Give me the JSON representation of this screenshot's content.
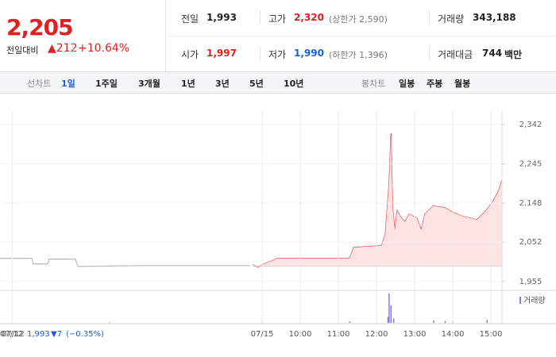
{
  "header": {
    "price": "2,205",
    "change_label": "전일대비",
    "change": "▲212",
    "change_rate": "+10.64%",
    "stats": [
      {
        "label": "전일",
        "value": "1,993",
        "color": "#222222"
      },
      {
        "label": "고가",
        "value": "2,320",
        "note": "(상한가 2,590)",
        "color": "#e02020"
      },
      {
        "label": "거래량",
        "value": "343,188",
        "color": "#222222"
      },
      {
        "label": "시가",
        "value": "1,997",
        "color": "#e02020"
      },
      {
        "label": "저가",
        "value": "1,990",
        "note": "(하한가 1,396)",
        "color": "#1a5fd6"
      },
      {
        "label": "거래대금",
        "value": "744",
        "unit": "백만",
        "color": "#222222"
      }
    ]
  },
  "tabs": {
    "line_label": "선차트",
    "periods": [
      "1일",
      "1주일",
      "3개월",
      "1년",
      "3년",
      "5년",
      "10년"
    ],
    "active": "1일",
    "candle_label": "봉차트",
    "candles": [
      "일봉",
      "주봉",
      "월봉"
    ]
  },
  "chart_data": {
    "type": "line",
    "xlim": [
      -6.875,
      6.29
    ],
    "ylim": [
      1935,
      2375
    ],
    "xticks": [
      {
        "value": -6.55,
        "label": "07/12"
      },
      {
        "value": 0,
        "label": "07/15"
      },
      {
        "value": 1,
        "label": "10:00"
      },
      {
        "value": 2,
        "label": "11:00"
      },
      {
        "value": 3,
        "label": "12:00"
      },
      {
        "value": 4,
        "label": "13:00"
      },
      {
        "value": 5,
        "label": "14:00"
      },
      {
        "value": 6,
        "label": "15:00"
      }
    ],
    "yticks": [
      {
        "value": 2342,
        "label": "2,342"
      },
      {
        "value": 2245,
        "label": "2,245"
      },
      {
        "value": 2148,
        "label": "2,148"
      },
      {
        "value": 2052,
        "label": "2,052"
      },
      {
        "value": 1955,
        "label": "1,955"
      }
    ],
    "grid": true,
    "baseline": 1993,
    "series": [
      {
        "color": "#b8b8b8",
        "x": [
          -6.875,
          -6.04,
          -6.0,
          -5.63,
          -5.58,
          -4.9,
          -4.83,
          -3.23,
          -0.31
        ],
        "values": [
          2012,
          2012,
          1998,
          1998,
          2010,
          2010,
          1992,
          1994,
          1994
        ]
      },
      {
        "color": "#e8383d",
        "fill": "#fde3e3",
        "x": [
          -0.25,
          -0.1,
          0,
          0.31,
          0.42,
          2.29,
          2.35,
          2.4,
          3.13,
          3.23,
          3.33,
          3.38,
          3.42,
          3.48,
          3.54,
          3.65,
          3.75,
          3.85,
          4.06,
          4.17,
          4.27,
          4.48,
          4.79,
          5.0,
          5.21,
          5.63,
          5.83,
          6.04,
          6.21,
          6.29
        ],
        "values": [
          1996,
          1990,
          1996,
          2008,
          2012,
          2012,
          2025,
          2039,
          2043,
          2072,
          2199,
          2320,
          2138,
          2082,
          2130,
          2111,
          2102,
          2121,
          2111,
          2082,
          2121,
          2141,
          2137,
          2125,
          2117,
          2107,
          2125,
          2150,
          2180,
          2205
        ]
      }
    ],
    "volume": {
      "name": "거래량",
      "color": "#8c7bd6",
      "ylim": [
        0,
        100
      ],
      "x": [
        -4,
        0,
        2.3,
        3.3,
        3.33,
        3.38,
        3.45,
        4.5,
        4.8,
        5.0,
        5.9
      ],
      "values": [
        2,
        3,
        5,
        20,
        100,
        60,
        15,
        8,
        6,
        5,
        10
      ]
    }
  },
  "hover_info": {
    "date": "07/12",
    "price": "1,993",
    "change": "▼7",
    "change_rate": "(−0.35%)"
  }
}
